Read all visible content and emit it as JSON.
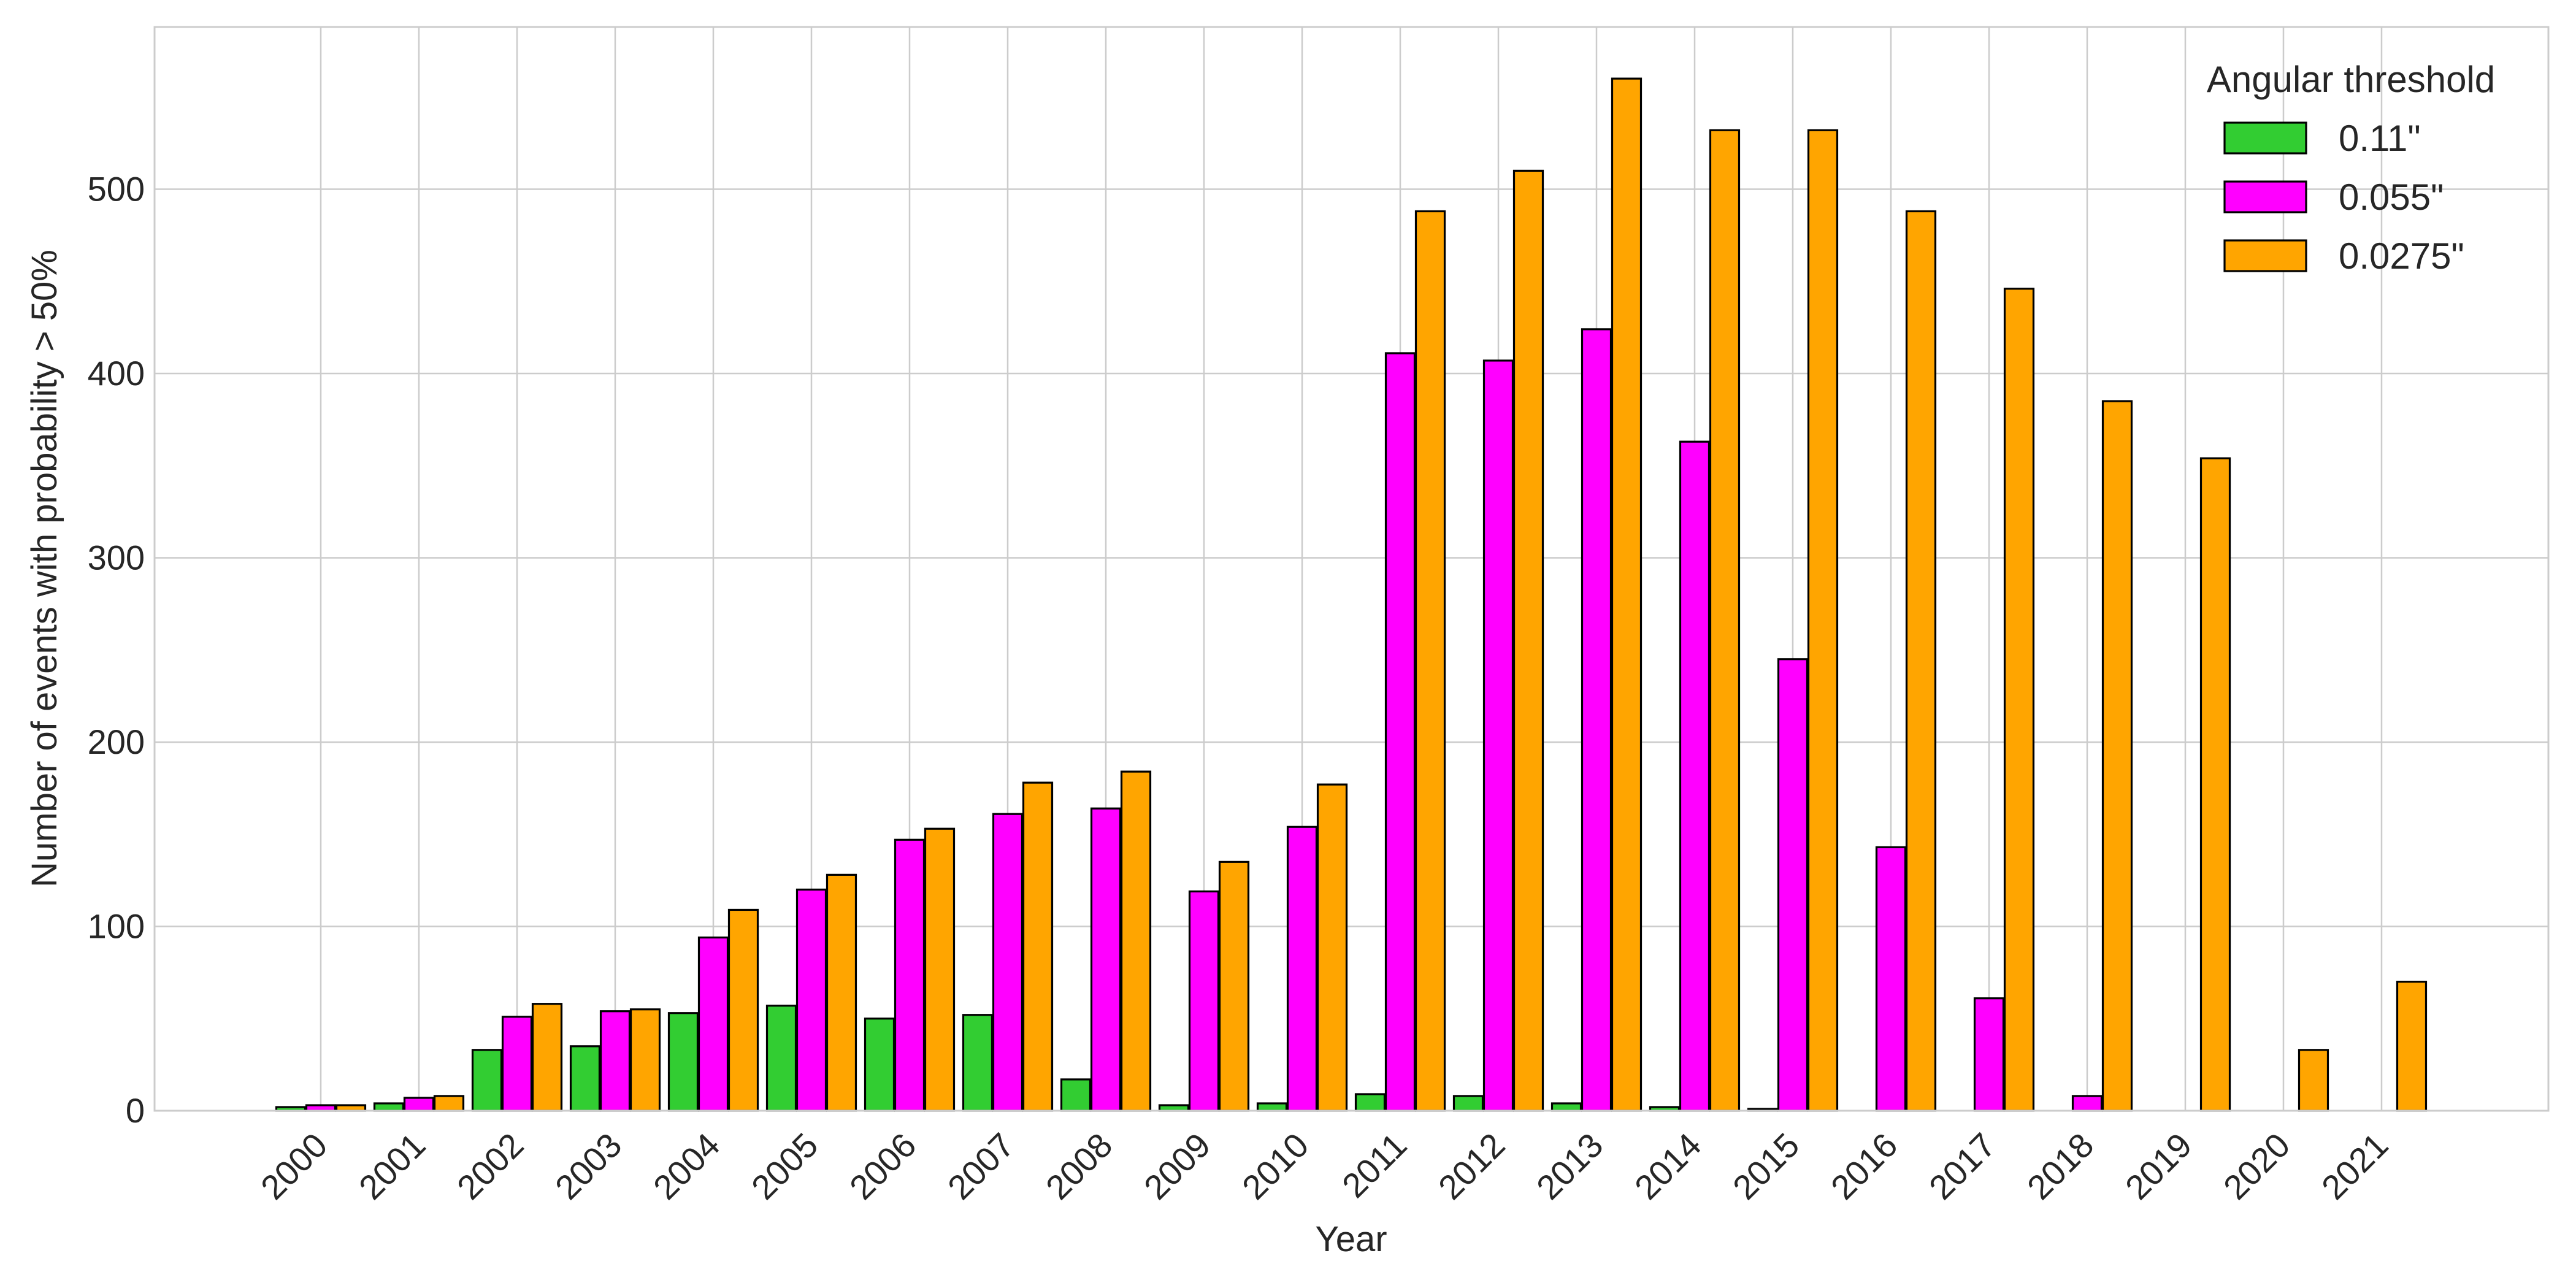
{
  "chart_data": {
    "type": "bar",
    "title": "",
    "xlabel": "Year",
    "ylabel": "Number of events with probability > 50%",
    "categories": [
      "2000",
      "2001",
      "2002",
      "2003",
      "2004",
      "2005",
      "2006",
      "2007",
      "2008",
      "2009",
      "2010",
      "2011",
      "2012",
      "2013",
      "2014",
      "2015",
      "2016",
      "2017",
      "2018",
      "2019",
      "2020",
      "2021"
    ],
    "series": [
      {
        "name": "0.11\"",
        "color": "#32cd32",
        "values": [
          2,
          4,
          33,
          35,
          53,
          57,
          50,
          52,
          17,
          3,
          4,
          9,
          8,
          4,
          2,
          1,
          0,
          0,
          0,
          0,
          0,
          0
        ]
      },
      {
        "name": "0.055\"",
        "color": "#ff00ff",
        "values": [
          3,
          7,
          51,
          54,
          94,
          120,
          147,
          161,
          164,
          119,
          154,
          411,
          407,
          424,
          363,
          245,
          143,
          61,
          8,
          0,
          0,
          0
        ]
      },
      {
        "name": "0.0275\"",
        "color": "#ffa500",
        "values": [
          3,
          8,
          58,
          55,
          109,
          128,
          153,
          178,
          184,
          135,
          177,
          488,
          510,
          560,
          532,
          532,
          488,
          446,
          385,
          354,
          33,
          70
        ]
      }
    ],
    "ylim": [
      0,
      588
    ],
    "yticks": [
      0,
      100,
      200,
      300,
      400,
      500
    ],
    "grid": true,
    "legend": {
      "title": "Angular threshold",
      "position": "top-right"
    }
  }
}
